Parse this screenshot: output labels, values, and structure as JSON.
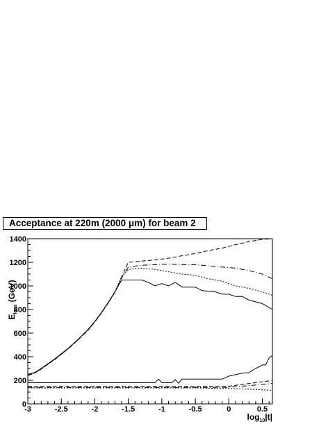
{
  "chart_data": {
    "type": "line",
    "title": "Acceptance at 220m (2000 μm) for beam 2",
    "xlabel": "log10|t|",
    "xlabel_main": "log",
    "xlabel_sub": "10",
    "xlabel_tail": "|t|",
    "ylabel": "Eloss (GeV)",
    "ylabel_main": "E",
    "ylabel_sub": "loss",
    "ylabel_tail": " (GeV)",
    "xlim": [
      -3,
      0.65
    ],
    "ylim": [
      0,
      1400
    ],
    "xticks": [
      -3,
      -2.5,
      -2,
      -1.5,
      -1,
      -0.5,
      0,
      0.5
    ],
    "xtick_labels": [
      "-3",
      "-2.5",
      "-2",
      "-1.5",
      "-1",
      "-0.5",
      "0",
      "0.5"
    ],
    "yticks": [
      0,
      200,
      400,
      600,
      800,
      1000,
      1200,
      1400
    ],
    "ytick_labels": [
      "0",
      "200",
      "400",
      "600",
      "800",
      "1000",
      "1200",
      "1400"
    ],
    "grid": false,
    "legend": "none",
    "series": [
      {
        "style": "solid",
        "points": [
          [
            -3,
            250
          ],
          [
            -2.9,
            265
          ],
          [
            -2.8,
            300
          ],
          [
            -2.7,
            340
          ],
          [
            -2.6,
            380
          ],
          [
            -2.5,
            425
          ],
          [
            -2.4,
            470
          ],
          [
            -2.3,
            520
          ],
          [
            -2.2,
            575
          ],
          [
            -2.1,
            630
          ],
          [
            -2.0,
            700
          ],
          [
            -1.9,
            775
          ],
          [
            -1.8,
            860
          ],
          [
            -1.7,
            950
          ],
          [
            -1.6,
            1050
          ],
          [
            -1.5,
            1050
          ],
          [
            -1.3,
            1050
          ],
          [
            -1.2,
            1030
          ],
          [
            -1.1,
            1000
          ],
          [
            -1.0,
            1020
          ],
          [
            -0.9,
            1000
          ],
          [
            -0.8,
            1030
          ],
          [
            -0.7,
            990
          ],
          [
            -0.5,
            990
          ],
          [
            -0.4,
            960
          ],
          [
            -0.2,
            950
          ],
          [
            -0.1,
            930
          ],
          [
            0,
            930
          ],
          [
            0.1,
            910
          ],
          [
            0.2,
            910
          ],
          [
            0.3,
            880
          ],
          [
            0.5,
            850
          ],
          [
            0.65,
            800
          ]
        ]
      },
      {
        "style": "dashed",
        "points": [
          [
            -3,
            240
          ],
          [
            -2.9,
            260
          ],
          [
            -2.8,
            295
          ],
          [
            -2.7,
            335
          ],
          [
            -2.6,
            375
          ],
          [
            -2.5,
            420
          ],
          [
            -2.4,
            465
          ],
          [
            -2.3,
            515
          ],
          [
            -2.2,
            570
          ],
          [
            -2.1,
            625
          ],
          [
            -2.0,
            695
          ],
          [
            -1.9,
            770
          ],
          [
            -1.8,
            855
          ],
          [
            -1.7,
            945
          ],
          [
            -1.6,
            1060
          ],
          [
            -1.55,
            1140
          ],
          [
            -1.5,
            1200
          ],
          [
            -1.3,
            1210
          ],
          [
            -1.1,
            1220
          ],
          [
            -0.9,
            1235
          ],
          [
            -0.7,
            1255
          ],
          [
            -0.5,
            1275
          ],
          [
            -0.3,
            1300
          ],
          [
            -0.1,
            1320
          ],
          [
            0.1,
            1350
          ],
          [
            0.3,
            1375
          ],
          [
            0.5,
            1395
          ],
          [
            0.65,
            1400
          ]
        ]
      },
      {
        "style": "dashdot",
        "points": [
          [
            -3,
            245
          ],
          [
            -2.9,
            262
          ],
          [
            -2.8,
            297
          ],
          [
            -2.7,
            337
          ],
          [
            -2.6,
            377
          ],
          [
            -2.5,
            422
          ],
          [
            -2.4,
            467
          ],
          [
            -2.3,
            517
          ],
          [
            -2.2,
            572
          ],
          [
            -2.1,
            627
          ],
          [
            -2.0,
            697
          ],
          [
            -1.9,
            772
          ],
          [
            -1.8,
            857
          ],
          [
            -1.7,
            947
          ],
          [
            -1.6,
            1070
          ],
          [
            -1.5,
            1160
          ],
          [
            -1.3,
            1175
          ],
          [
            -1.1,
            1180
          ],
          [
            -0.9,
            1185
          ],
          [
            -0.7,
            1180
          ],
          [
            -0.5,
            1180
          ],
          [
            -0.3,
            1170
          ],
          [
            -0.1,
            1160
          ],
          [
            0.1,
            1150
          ],
          [
            0.3,
            1130
          ],
          [
            0.5,
            1100
          ],
          [
            0.65,
            1060
          ]
        ]
      },
      {
        "style": "dotted",
        "points": [
          [
            -3,
            248
          ],
          [
            -2.9,
            264
          ],
          [
            -2.8,
            299
          ],
          [
            -2.7,
            339
          ],
          [
            -2.6,
            379
          ],
          [
            -2.5,
            424
          ],
          [
            -2.4,
            469
          ],
          [
            -2.3,
            519
          ],
          [
            -2.2,
            574
          ],
          [
            -2.1,
            629
          ],
          [
            -2.0,
            699
          ],
          [
            -1.9,
            774
          ],
          [
            -1.8,
            859
          ],
          [
            -1.7,
            949
          ],
          [
            -1.6,
            1080
          ],
          [
            -1.5,
            1140
          ],
          [
            -1.3,
            1150
          ],
          [
            -1.1,
            1140
          ],
          [
            -0.9,
            1120
          ],
          [
            -0.7,
            1100
          ],
          [
            -0.5,
            1090
          ],
          [
            -0.3,
            1060
          ],
          [
            -0.1,
            1040
          ],
          [
            0.1,
            1000
          ],
          [
            0.3,
            980
          ],
          [
            0.5,
            950
          ],
          [
            0.65,
            920
          ]
        ]
      },
      {
        "style": "solid",
        "points": [
          [
            -3,
            180
          ],
          [
            -1.1,
            180
          ],
          [
            -1.05,
            210
          ],
          [
            -1.0,
            180
          ],
          [
            -0.85,
            180
          ],
          [
            -0.8,
            205
          ],
          [
            -0.75,
            175
          ],
          [
            -0.7,
            210
          ],
          [
            -0.1,
            210
          ],
          [
            0,
            235
          ],
          [
            0.2,
            260
          ],
          [
            0.3,
            265
          ],
          [
            0.4,
            300
          ],
          [
            0.5,
            330
          ],
          [
            0.55,
            330
          ],
          [
            0.6,
            390
          ],
          [
            0.65,
            410
          ]
        ]
      },
      {
        "style": "dashed",
        "points": [
          [
            -3,
            150
          ],
          [
            -1.0,
            150
          ],
          [
            -0.5,
            150
          ],
          [
            0,
            150
          ],
          [
            0.2,
            165
          ],
          [
            0.4,
            180
          ],
          [
            0.6,
            195
          ],
          [
            0.65,
            200
          ]
        ]
      },
      {
        "style": "dashdot",
        "points": [
          [
            -3,
            140
          ],
          [
            -1.0,
            140
          ],
          [
            -0.5,
            140
          ],
          [
            0,
            140
          ],
          [
            0.2,
            150
          ],
          [
            0.4,
            160
          ],
          [
            0.6,
            170
          ],
          [
            0.65,
            175
          ]
        ]
      },
      {
        "style": "dotted",
        "points": [
          [
            -3,
            135
          ],
          [
            -0.5,
            135
          ],
          [
            0,
            130
          ],
          [
            0.3,
            125
          ],
          [
            0.65,
            115
          ]
        ]
      }
    ]
  }
}
